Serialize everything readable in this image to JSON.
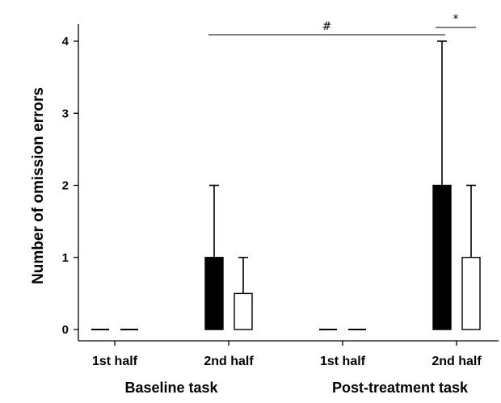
{
  "chart_data": {
    "type": "bar",
    "title": "",
    "ylabel": "Number of omission errors",
    "xlabel": "",
    "ylim": [
      0,
      4.2
    ],
    "yticks": [
      0,
      1,
      2,
      3,
      4
    ],
    "y_tick_labels": [
      "0",
      "1",
      "2",
      "3",
      "4"
    ],
    "groups": [
      "Baseline task",
      "Post-treatment task"
    ],
    "categories": [
      "1st half",
      "2nd half",
      "1st half",
      "2nd half"
    ],
    "category_group": [
      0,
      0,
      1,
      1
    ],
    "series": [
      {
        "fill": "filled",
        "color": "#000000",
        "values": [
          0,
          1,
          0,
          2
        ],
        "error_upper": [
          0,
          2,
          0,
          4
        ]
      },
      {
        "fill": "open",
        "color": "#ffffff",
        "values": [
          0,
          0.5,
          0,
          1
        ],
        "error_upper": [
          0,
          1,
          0,
          2
        ]
      }
    ],
    "annotations": [
      {
        "label": "#",
        "from": [
          1,
          0
        ],
        "to": [
          3,
          0
        ]
      },
      {
        "label": "*",
        "from": [
          3,
          0
        ],
        "to": [
          3,
          1
        ]
      }
    ],
    "grid": false,
    "legend": "none"
  }
}
